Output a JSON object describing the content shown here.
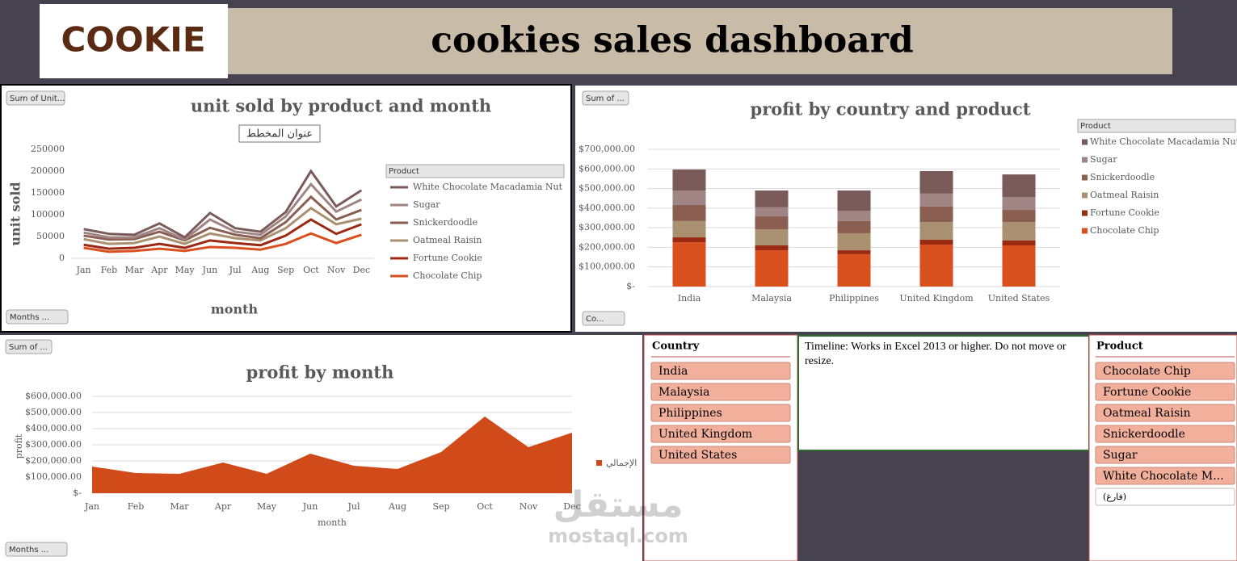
{
  "header": {
    "logo": "COOKIE",
    "title": "cookies sales dashboard"
  },
  "chart_data": [
    {
      "type": "line",
      "stacked": true,
      "title": "unit sold by product and month",
      "tooltip": "عنوان المخطط",
      "ylabel": "unit sold",
      "xlabel": "month",
      "field_buttons": [
        "Sum of Unit...",
        "Months ..."
      ],
      "legend_title": "Product",
      "grid": false,
      "categories": [
        "Jan",
        "Feb",
        "Mar",
        "Apr",
        "May",
        "Jun",
        "Jul",
        "Aug",
        "Sep",
        "Oct",
        "Nov",
        "Dec"
      ],
      "ylim": [
        0,
        250000
      ],
      "yticks": [
        0,
        50000,
        100000,
        150000,
        200000,
        250000
      ],
      "series": [
        {
          "name": "Chocolate Chip",
          "color": "#d9501f",
          "values": [
            24000,
            15000,
            17000,
            22000,
            17000,
            26000,
            24000,
            20000,
            33000,
            57000,
            35000,
            54000
          ]
        },
        {
          "name": "Fortune Cookie",
          "color": "#9b2a12",
          "values": [
            7000,
            7000,
            7000,
            11000,
            7000,
            15000,
            11000,
            10000,
            19000,
            32000,
            21000,
            24000
          ]
        },
        {
          "name": "Oatmeal Raisin",
          "color": "#a89070",
          "values": [
            13000,
            11000,
            11000,
            17000,
            9000,
            16000,
            11000,
            11000,
            17000,
            26000,
            22000,
            13000
          ]
        },
        {
          "name": "Snickerdoodle",
          "color": "#8b5e52",
          "values": [
            8000,
            10000,
            9000,
            11000,
            8000,
            13000,
            8000,
            5000,
            14000,
            26000,
            11000,
            20000
          ]
        },
        {
          "name": "Sugar",
          "color": "#a08585",
          "values": [
            7000,
            5000,
            4000,
            8000,
            2000,
            19000,
            7000,
            8000,
            13000,
            29000,
            18000,
            24000
          ]
        },
        {
          "name": "White Chocolate Macadamia Nut",
          "color": "#7b5a5a",
          "values": [
            8000,
            8000,
            6000,
            11000,
            5000,
            15000,
            8000,
            7000,
            10000,
            30000,
            12000,
            21000
          ]
        }
      ]
    },
    {
      "type": "bar",
      "stacked": true,
      "title": "profit by country and product",
      "field_buttons": [
        "Sum of ...",
        "Co..."
      ],
      "legend_title": "Product",
      "grid": true,
      "categories": [
        "India",
        "Malaysia",
        "Philippines",
        "United Kingdom",
        "United States"
      ],
      "ylim": [
        0,
        700000
      ],
      "yticks": [
        {
          "value": 0,
          "label": "$-"
        },
        {
          "value": 100000,
          "label": "$100,000.00"
        },
        {
          "value": 200000,
          "label": "$200,000.00"
        },
        {
          "value": 300000,
          "label": "$300,000.00"
        },
        {
          "value": 400000,
          "label": "$400,000.00"
        },
        {
          "value": 500000,
          "label": "$500,000.00"
        },
        {
          "value": 600000,
          "label": "$600,000.00"
        },
        {
          "value": 700000,
          "label": "$700,000.00"
        }
      ],
      "series": [
        {
          "name": "Chocolate Chip",
          "color": "#d9501f",
          "values": [
            226000,
            185000,
            165000,
            214000,
            210000
          ]
        },
        {
          "name": "Fortune Cookie",
          "color": "#9b2a12",
          "values": [
            25000,
            25000,
            20000,
            25000,
            25000
          ]
        },
        {
          "name": "Oatmeal Raisin",
          "color": "#a89070",
          "values": [
            83000,
            82000,
            87000,
            90000,
            94000
          ]
        },
        {
          "name": "Snickerdoodle",
          "color": "#8b5e52",
          "values": [
            82000,
            66000,
            62000,
            79000,
            62000
          ]
        },
        {
          "name": "Sugar",
          "color": "#a08585",
          "values": [
            74000,
            46000,
            53000,
            66000,
            66000
          ]
        },
        {
          "name": "White Chocolate Macadamia Nut",
          "color": "#7b5a5a",
          "values": [
            107000,
            86000,
            103000,
            115000,
            115000
          ]
        }
      ]
    },
    {
      "type": "area",
      "title": "profit by month",
      "ylabel": "profit",
      "xlabel": "month",
      "field_buttons": [
        "Sum of ...",
        "Months ..."
      ],
      "grid": true,
      "categories": [
        "Jan",
        "Feb",
        "Mar",
        "Apr",
        "May",
        "Jun",
        "Jul",
        "Aug",
        "Sep",
        "Oct",
        "Nov",
        "Dec"
      ],
      "ylim": [
        0,
        600000
      ],
      "yticks": [
        {
          "value": 0,
          "label": "$-"
        },
        {
          "value": 100000,
          "label": "$100,000.00"
        },
        {
          "value": 200000,
          "label": "$200,000.00"
        },
        {
          "value": 300000,
          "label": "$300,000.00"
        },
        {
          "value": 400000,
          "label": "$400,000.00"
        },
        {
          "value": 500000,
          "label": "$500,000.00"
        },
        {
          "value": 600000,
          "label": "$600,000.00"
        }
      ],
      "series": [
        {
          "name": "الإجمالي",
          "color": "#d14a1a",
          "values": [
            165000,
            125000,
            120000,
            190000,
            120000,
            245000,
            170000,
            150000,
            255000,
            475000,
            285000,
            375000
          ]
        }
      ]
    }
  ],
  "slicers": [
    {
      "title": "Country",
      "items": [
        "India",
        "Malaysia",
        "Philippines",
        "United Kingdom",
        "United States"
      ]
    },
    {
      "title": "Product",
      "items": [
        "Chocolate Chip",
        "Fortune Cookie",
        "Oatmeal Raisin",
        "Snickerdoodle",
        "Sugar",
        "White Chocolate M...",
        "(فارغ)"
      ]
    }
  ],
  "timeline": "Timeline: Works in Excel 2013 or higher. Do not move or resize.",
  "watermark": {
    "arabic": "مستقل",
    "latin": "mostaql.com"
  }
}
